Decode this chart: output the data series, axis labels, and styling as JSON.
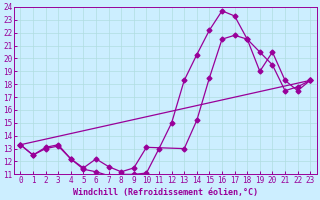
{
  "title": "",
  "xlabel": "Windchill (Refroidissement éolien,°C)",
  "ylabel": "",
  "xlim": [
    -0.5,
    23.5
  ],
  "ylim": [
    11,
    24
  ],
  "xticks": [
    0,
    1,
    2,
    3,
    4,
    5,
    6,
    7,
    8,
    9,
    10,
    11,
    12,
    13,
    14,
    15,
    16,
    17,
    18,
    19,
    20,
    21,
    22,
    23
  ],
  "yticks": [
    11,
    12,
    13,
    14,
    15,
    16,
    17,
    18,
    19,
    20,
    21,
    22,
    23,
    24
  ],
  "bg_color": "#cceeff",
  "grid_color": "#b0dde0",
  "line_color": "#990099",
  "lines": [
    {
      "x": [
        0,
        1,
        2,
        3,
        4,
        5,
        6,
        7,
        8,
        9,
        10,
        11,
        12,
        13,
        14,
        15,
        16,
        17,
        18,
        19,
        20,
        21,
        22,
        23
      ],
      "y": [
        13.3,
        12.5,
        13.0,
        13.2,
        12.2,
        11.4,
        11.2,
        10.9,
        11.0,
        11.0,
        11.1,
        13.0,
        15.0,
        18.3,
        20.3,
        22.2,
        23.7,
        23.3,
        21.5,
        20.5,
        19.5,
        17.5,
        17.8,
        18.3
      ]
    },
    {
      "x": [
        0,
        1,
        2,
        3,
        4,
        5,
        6,
        7,
        8,
        9,
        10,
        13,
        14,
        15,
        16,
        17,
        18,
        19,
        20,
        21,
        22,
        23
      ],
      "y": [
        13.3,
        12.5,
        13.1,
        13.3,
        12.2,
        11.5,
        12.2,
        11.6,
        11.2,
        11.5,
        13.1,
        13.0,
        15.2,
        18.5,
        21.5,
        21.8,
        21.5,
        19.0,
        20.5,
        18.3,
        17.5,
        18.3
      ]
    },
    {
      "x": [
        0,
        23
      ],
      "y": [
        13.3,
        18.3
      ]
    }
  ],
  "marker": "D",
  "markersize": 2.5,
  "linewidth": 0.9,
  "tick_fontsize": 5.5,
  "xlabel_fontsize": 6,
  "xlabel_fontfamily": "monospace",
  "xlabel_fontweight": "bold"
}
